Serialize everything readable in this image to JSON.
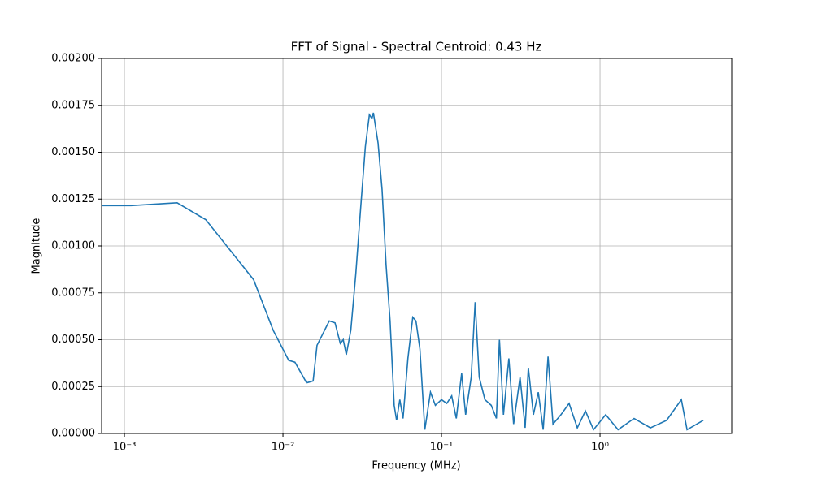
{
  "chart_data": {
    "type": "line",
    "title": "FFT of Signal - Spectral Centroid: 0.43 Hz",
    "x_label": "Frequency (MHz)",
    "y_label": "Magnitude",
    "xscale": "log",
    "grid": true,
    "xlim": [
      0.000718,
      6.77
    ],
    "ylim": [
      0,
      0.002
    ],
    "xticks": [
      {
        "value": 0.001,
        "label": "10⁻³"
      },
      {
        "value": 0.01,
        "label": "10⁻²"
      },
      {
        "value": 0.1,
        "label": "10⁻¹"
      },
      {
        "value": 1,
        "label": "10⁰"
      }
    ],
    "yticks": [
      {
        "value": 0,
        "label": "0.00000"
      },
      {
        "value": 0.00025,
        "label": "0.00025"
      },
      {
        "value": 0.0005,
        "label": "0.00050"
      },
      {
        "value": 0.00075,
        "label": "0.00075"
      },
      {
        "value": 0.001,
        "label": "0.00100"
      },
      {
        "value": 0.00125,
        "label": "0.00125"
      },
      {
        "value": 0.0015,
        "label": "0.00150"
      },
      {
        "value": 0.00175,
        "label": "0.00175"
      },
      {
        "value": 0.002,
        "label": "0.00200"
      }
    ],
    "x": [
      0.00072,
      0.0011,
      0.00215,
      0.00326,
      0.00653,
      0.00868,
      0.01087,
      0.0119,
      0.0141,
      0.0155,
      0.0164,
      0.0196,
      0.0213,
      0.023,
      0.024,
      0.0251,
      0.0268,
      0.0288,
      0.0309,
      0.0331,
      0.0351,
      0.0364,
      0.0372,
      0.0398,
      0.0422,
      0.0447,
      0.0474,
      0.0503,
      0.0521,
      0.0546,
      0.0572,
      0.0614,
      0.0659,
      0.069,
      0.0731,
      0.0785,
      0.0852,
      0.0915,
      0.1,
      0.108,
      0.116,
      0.124,
      0.134,
      0.142,
      0.154,
      0.163,
      0.173,
      0.188,
      0.206,
      0.222,
      0.232,
      0.246,
      0.266,
      0.285,
      0.313,
      0.337,
      0.353,
      0.38,
      0.408,
      0.438,
      0.47,
      0.505,
      0.567,
      0.638,
      0.719,
      0.809,
      0.91,
      1.086,
      1.3,
      1.64,
      2.08,
      2.63,
      3.26,
      3.54,
      4.48
    ],
    "series": [
      {
        "color": "#1f77b4",
        "values": [
          0.001215,
          0.001215,
          0.00123,
          0.00114,
          0.00082,
          0.00055,
          0.00039,
          0.00038,
          0.00027,
          0.00028,
          0.00047,
          0.0006,
          0.00059,
          0.00048,
          0.0005,
          0.00042,
          0.00055,
          0.00085,
          0.0012,
          0.00153,
          0.0017,
          0.00168,
          0.00171,
          0.00155,
          0.0013,
          0.0009,
          0.0006,
          0.00015,
          7e-05,
          0.00018,
          8e-05,
          0.0004,
          0.00062,
          0.0006,
          0.00045,
          2e-05,
          0.00022,
          0.00015,
          0.00018,
          0.00016,
          0.0002,
          8e-05,
          0.00032,
          0.0001,
          0.0003,
          0.0007,
          0.0003,
          0.00018,
          0.00015,
          8e-05,
          0.0005,
          0.0001,
          0.0004,
          5e-05,
          0.0003,
          3e-05,
          0.00035,
          0.0001,
          0.00022,
          2e-05,
          0.00041,
          5e-05,
          0.0001,
          0.00016,
          3e-05,
          0.00012,
          2e-05,
          0.0001,
          2e-05,
          8e-05,
          3e-05,
          7e-05,
          0.00018,
          2e-05,
          7e-05
        ]
      }
    ]
  }
}
